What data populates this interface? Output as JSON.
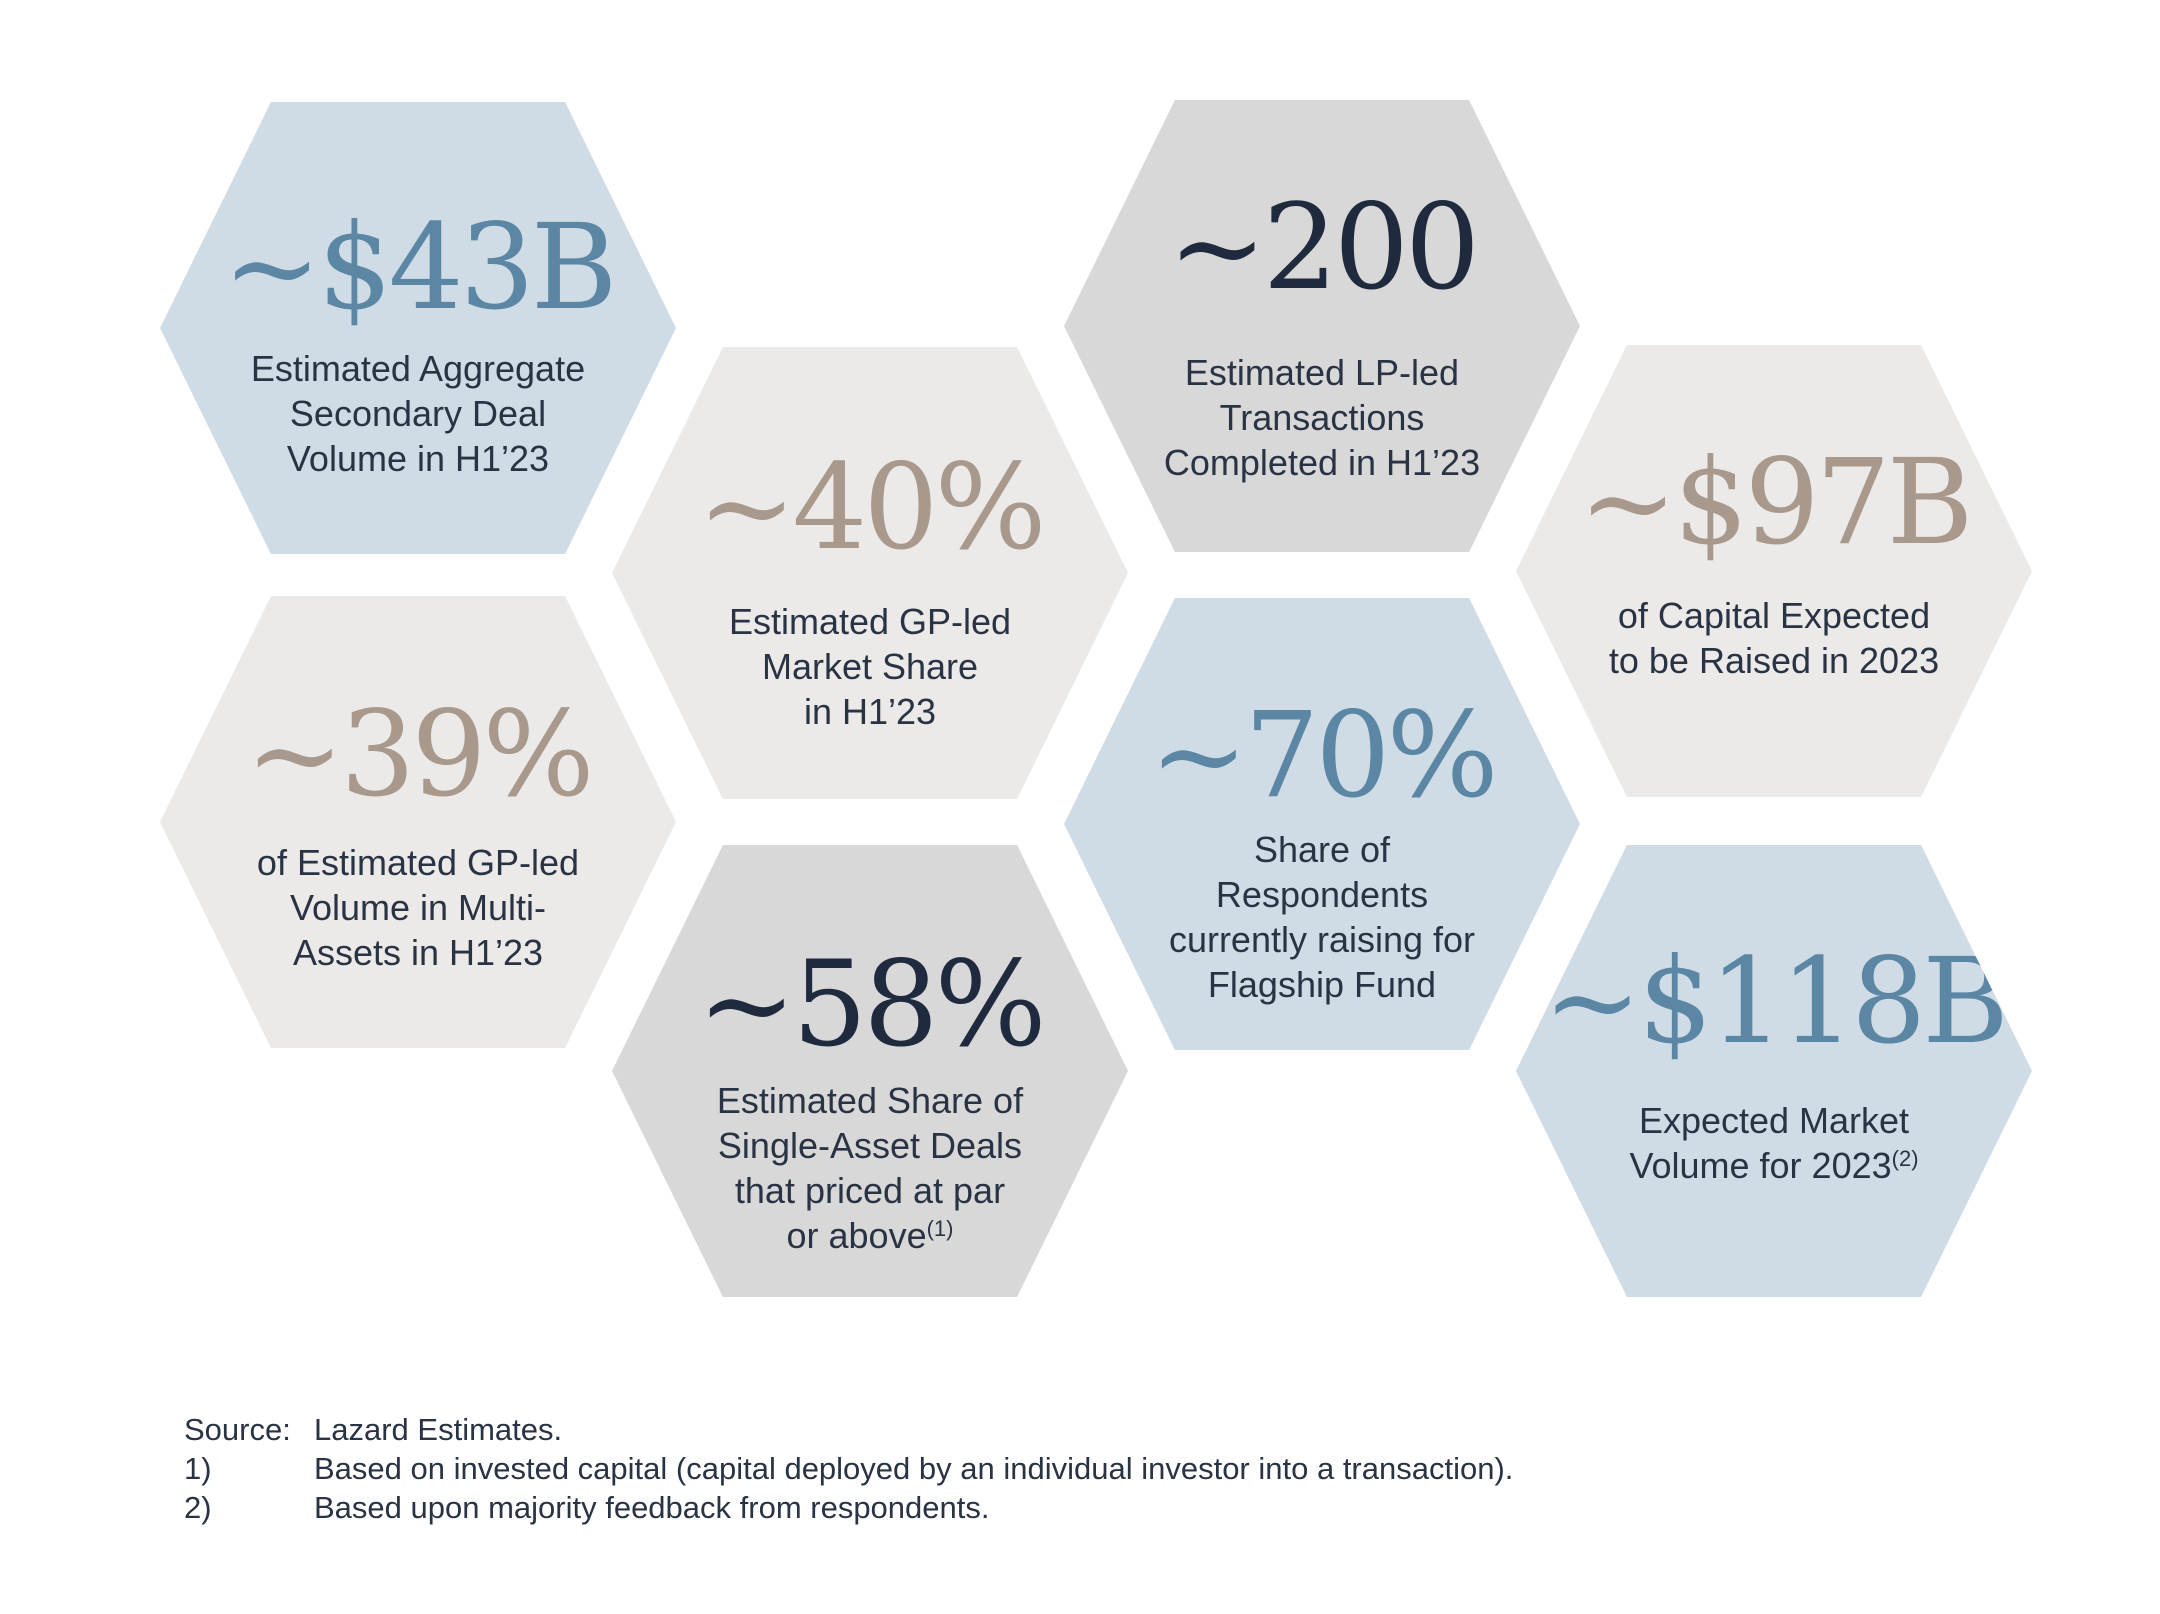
{
  "colors": {
    "blue_fill": "#cfdce6",
    "light_fill": "#ebeae8",
    "gray_fill": "#d8d8d8",
    "blue_text": "#5b87a5",
    "taupe_text": "#a8998c",
    "navy_text": "#1f2a3e",
    "body_text": "#2a3344"
  },
  "stats": {
    "s43b": {
      "value": "~$43B",
      "label": [
        "Estimated Aggregate",
        "Secondary Deal",
        "Volume in H1’23"
      ]
    },
    "s40": {
      "value": "~40%",
      "label": [
        "Estimated GP-led",
        "Market Share",
        "in H1’23"
      ]
    },
    "s200": {
      "value": "~200",
      "label": [
        "Estimated LP-led",
        "Transactions",
        "Completed in H1’23"
      ]
    },
    "s97b": {
      "value": "~$97B",
      "label": [
        "of Capital Expected",
        "to be Raised in 2023"
      ]
    },
    "s39": {
      "value": "~39%",
      "label": [
        "of Estimated GP-led",
        "Volume in Multi-",
        "Assets in H1’23"
      ]
    },
    "s70": {
      "value": "~70%",
      "label": [
        "Share of",
        "Respondents",
        "currently raising for",
        "Flagship Fund"
      ]
    },
    "s58": {
      "value": "~58%",
      "label": [
        "Estimated Share of",
        "Single-Asset Deals",
        "that priced at par",
        "or above"
      ],
      "note": "(1)"
    },
    "s118b": {
      "value": "~$118B",
      "label": [
        "Expected Market",
        "Volume for 2023"
      ],
      "note": "(2)"
    }
  },
  "footnotes": [
    {
      "key": "Source:",
      "text": "Lazard Estimates."
    },
    {
      "key": "1)",
      "text": "Based on invested capital (capital deployed by an individual investor into a transaction)."
    },
    {
      "key": "2)",
      "text": "Based upon majority feedback from respondents."
    }
  ]
}
